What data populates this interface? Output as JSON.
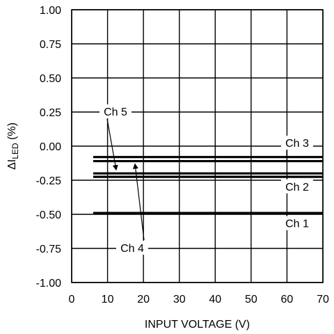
{
  "chart_data": {
    "type": "line",
    "xlabel": "INPUT VOLTAGE (V)",
    "ylabel": "ΔI",
    "ylabel_sub": "LED",
    "ylabel_suffix": " (%)",
    "xlim": [
      0,
      70
    ],
    "ylim": [
      -1.0,
      1.0
    ],
    "grid": true,
    "x_ticks": [
      "0",
      "10",
      "20",
      "30",
      "40",
      "50",
      "60",
      "70"
    ],
    "y_ticks": [
      "1.00",
      "0.75",
      "0.50",
      "0.25",
      "0.00",
      "-0.25",
      "-0.50",
      "-0.75",
      "-1.00"
    ],
    "series": [
      {
        "name": "Ch 3",
        "x": [
          6,
          70
        ],
        "y": [
          -0.08,
          -0.08
        ]
      },
      {
        "name": "",
        "x": [
          6,
          70
        ],
        "y": [
          -0.11,
          -0.11
        ]
      },
      {
        "name": "Ch 5",
        "x": [
          6,
          70
        ],
        "y": [
          -0.2,
          -0.2
        ]
      },
      {
        "name": "Ch 2",
        "x": [
          6,
          70
        ],
        "y": [
          -0.225,
          -0.225
        ]
      },
      {
        "name": "Ch 1",
        "x": [
          6,
          70
        ],
        "y": [
          -0.49,
          -0.49
        ]
      }
    ],
    "annotations": [
      {
        "text": "Ch 5",
        "points_to_series": 2
      },
      {
        "text": "Ch 4",
        "points_to_series": 1
      },
      {
        "text": "Ch 3",
        "points_to_series": 0
      },
      {
        "text": "Ch 2",
        "points_to_series": 3
      },
      {
        "text": "Ch 1",
        "points_to_series": 4
      }
    ]
  }
}
